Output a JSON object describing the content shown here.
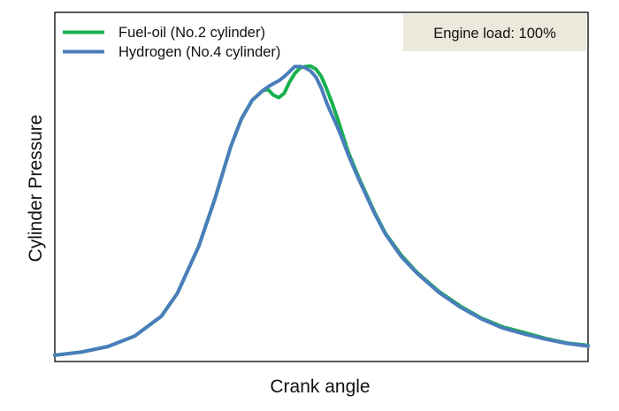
{
  "chart_data": {
    "type": "line",
    "title": "",
    "xlabel": "Crank angle",
    "ylabel": "Cylinder Pressure",
    "xlim": [
      0,
      100
    ],
    "ylim": [
      0,
      100
    ],
    "ticks_shown": false,
    "grid": false,
    "legend": {
      "placement": "top-left"
    },
    "annotation": {
      "text": "Engine load: 100%",
      "placement": "top-right",
      "background": "#ece8dc"
    },
    "series": [
      {
        "name": "Fuel-oil (No.2 cylinder)",
        "color": "#16b04c",
        "x": [
          0,
          5,
          10,
          15,
          20,
          23,
          27,
          30,
          33,
          35,
          37,
          39,
          40,
          41,
          42,
          43,
          44,
          45,
          46,
          47,
          48,
          49,
          50,
          51,
          52,
          53,
          54,
          55,
          56,
          57,
          58,
          60,
          62,
          65,
          68,
          72,
          76,
          80,
          84,
          88,
          92,
          96,
          100
        ],
        "values": [
          1.8,
          2.7,
          4.3,
          7.3,
          13,
          19.6,
          33,
          46.5,
          61.6,
          69.5,
          74.8,
          77.6,
          77.9,
          76.3,
          75.6,
          76.8,
          80,
          82.5,
          84.1,
          84.5,
          84.6,
          83.7,
          81.6,
          78,
          74,
          69.7,
          64.9,
          60.1,
          56.4,
          52.7,
          49.4,
          42.6,
          36.7,
          30.4,
          25.4,
          20.1,
          15.9,
          12.4,
          9.9,
          8.3,
          6.6,
          5.3,
          4.6
        ]
      },
      {
        "name": "Hydrogen (No.4 cylinder)",
        "color": "#4a7ebb",
        "x": [
          0,
          5,
          10,
          15,
          20,
          23,
          27,
          30,
          33,
          35,
          37,
          39,
          40,
          41,
          42,
          43,
          44,
          45,
          46,
          47,
          48,
          49,
          50,
          51,
          52,
          53,
          54,
          55,
          56,
          57,
          58,
          60,
          62,
          65,
          68,
          72,
          76,
          80,
          84,
          88,
          92,
          96,
          100
        ],
        "values": [
          1.8,
          2.7,
          4.3,
          7.3,
          13,
          19.6,
          33,
          46.5,
          61.6,
          69.5,
          74.8,
          77.6,
          78.7,
          79.6,
          80.4,
          81.6,
          83,
          84.5,
          84.5,
          84.1,
          83.2,
          81.4,
          78.2,
          74,
          70.5,
          67.2,
          63.4,
          59.3,
          55.7,
          52.2,
          48.9,
          42.3,
          36.5,
          30,
          25.2,
          19.8,
          15.6,
          12.2,
          9.6,
          7.9,
          6.4,
          5.2,
          4.4
        ]
      }
    ]
  }
}
